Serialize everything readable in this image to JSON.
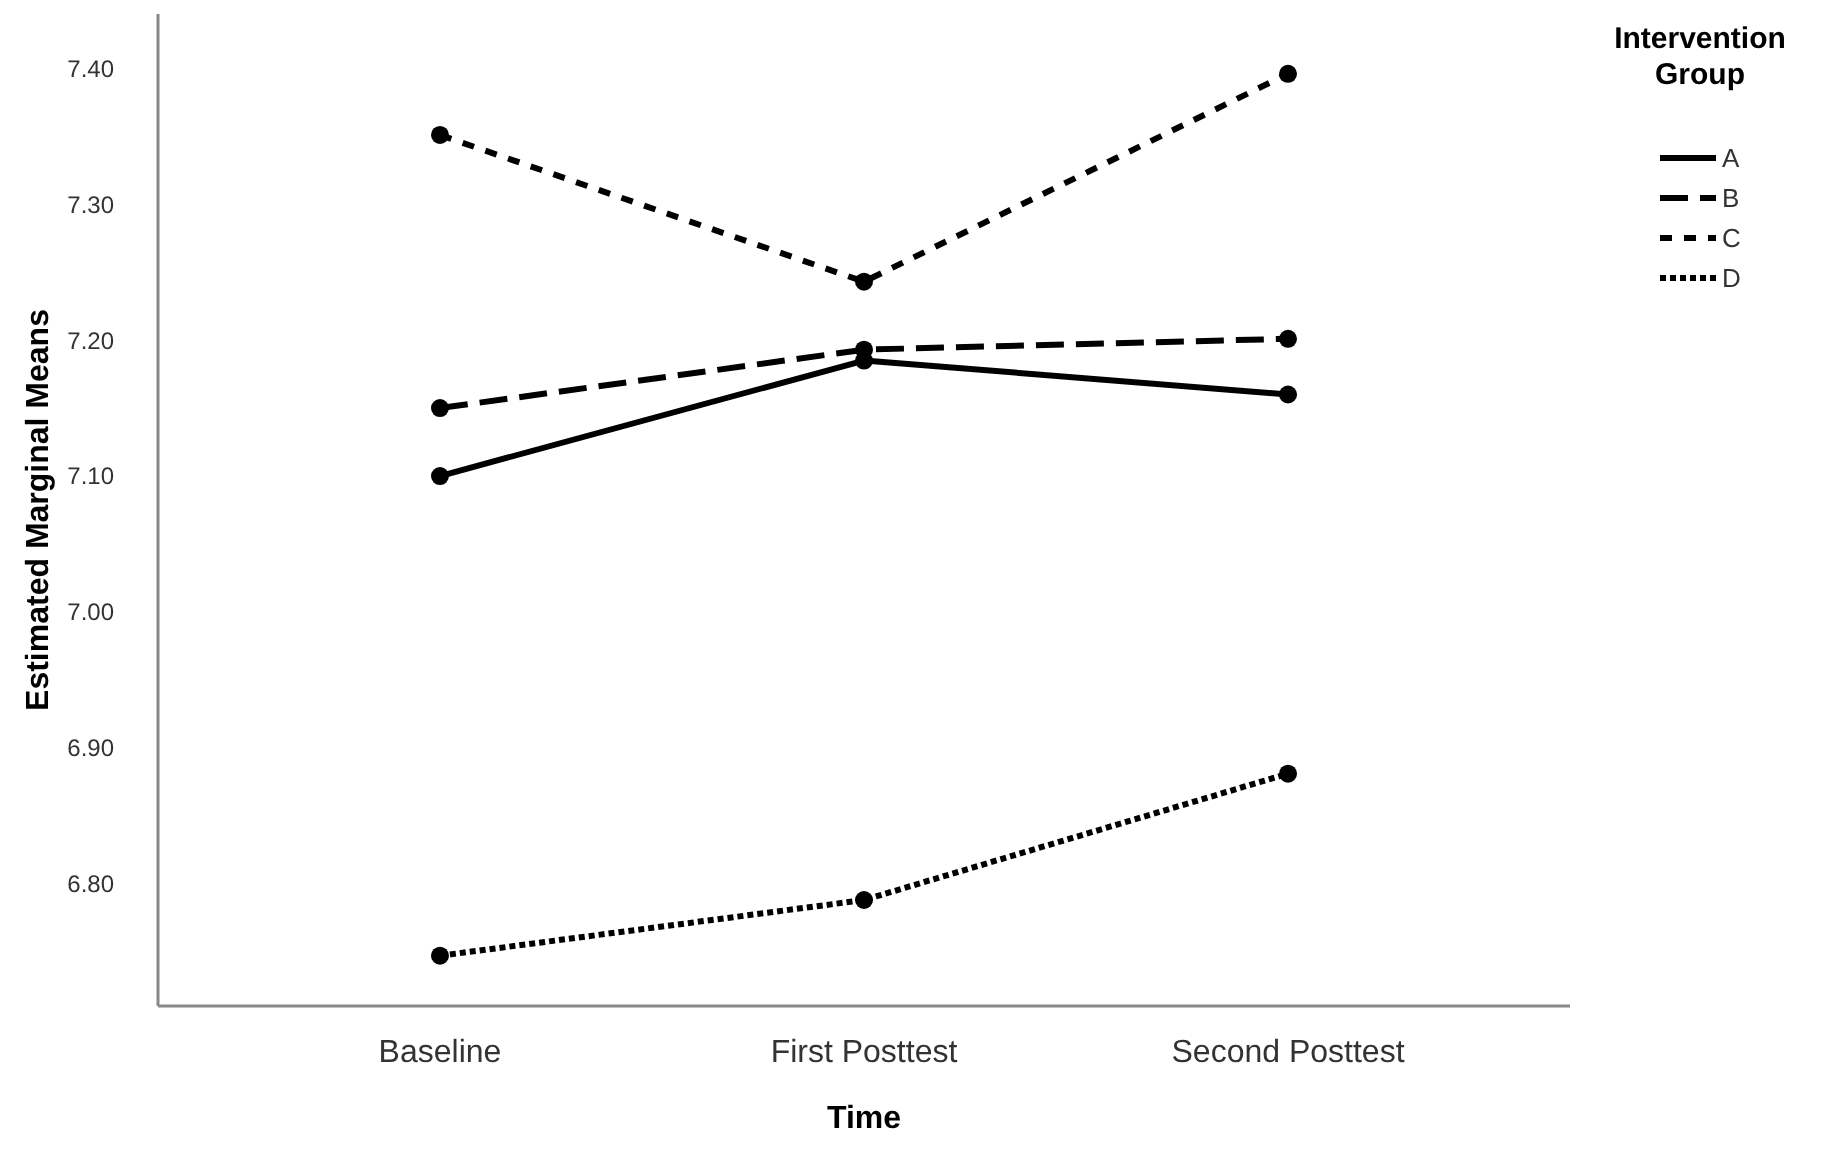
{
  "chart_data": {
    "type": "line",
    "xlabel": "Time",
    "ylabel": "Estimated Marginal Means",
    "legend_title": "Intervention Group",
    "legend": "top right",
    "marker": "circle",
    "categories": [
      "Baseline",
      "First Posttest",
      "Second Posttest"
    ],
    "ylim": [
      6.71,
      7.44
    ],
    "yticks": [
      {
        "value": 6.8,
        "label": "6.80"
      },
      {
        "value": 6.9,
        "label": "6.90"
      },
      {
        "value": 7.0,
        "label": "7.00"
      },
      {
        "value": 7.1,
        "label": "7.10"
      },
      {
        "value": 7.2,
        "label": "7.20"
      },
      {
        "value": 7.3,
        "label": "7.30"
      },
      {
        "value": 7.4,
        "label": "7.40"
      }
    ],
    "series": [
      {
        "name": "A",
        "color": "#000000",
        "line_style": "solid",
        "values": [
          7.1,
          7.185,
          7.16
        ]
      },
      {
        "name": "B",
        "color": "#000000",
        "line_style": "dashed",
        "values": [
          7.15,
          7.193,
          7.201
        ]
      },
      {
        "name": "C",
        "color": "#000000",
        "line_style": "dashed_short",
        "values": [
          7.351,
          7.243,
          7.396
        ]
      },
      {
        "name": "D",
        "color": "#000000",
        "line_style": "dotted",
        "values": [
          6.747,
          6.788,
          6.881
        ]
      }
    ]
  }
}
